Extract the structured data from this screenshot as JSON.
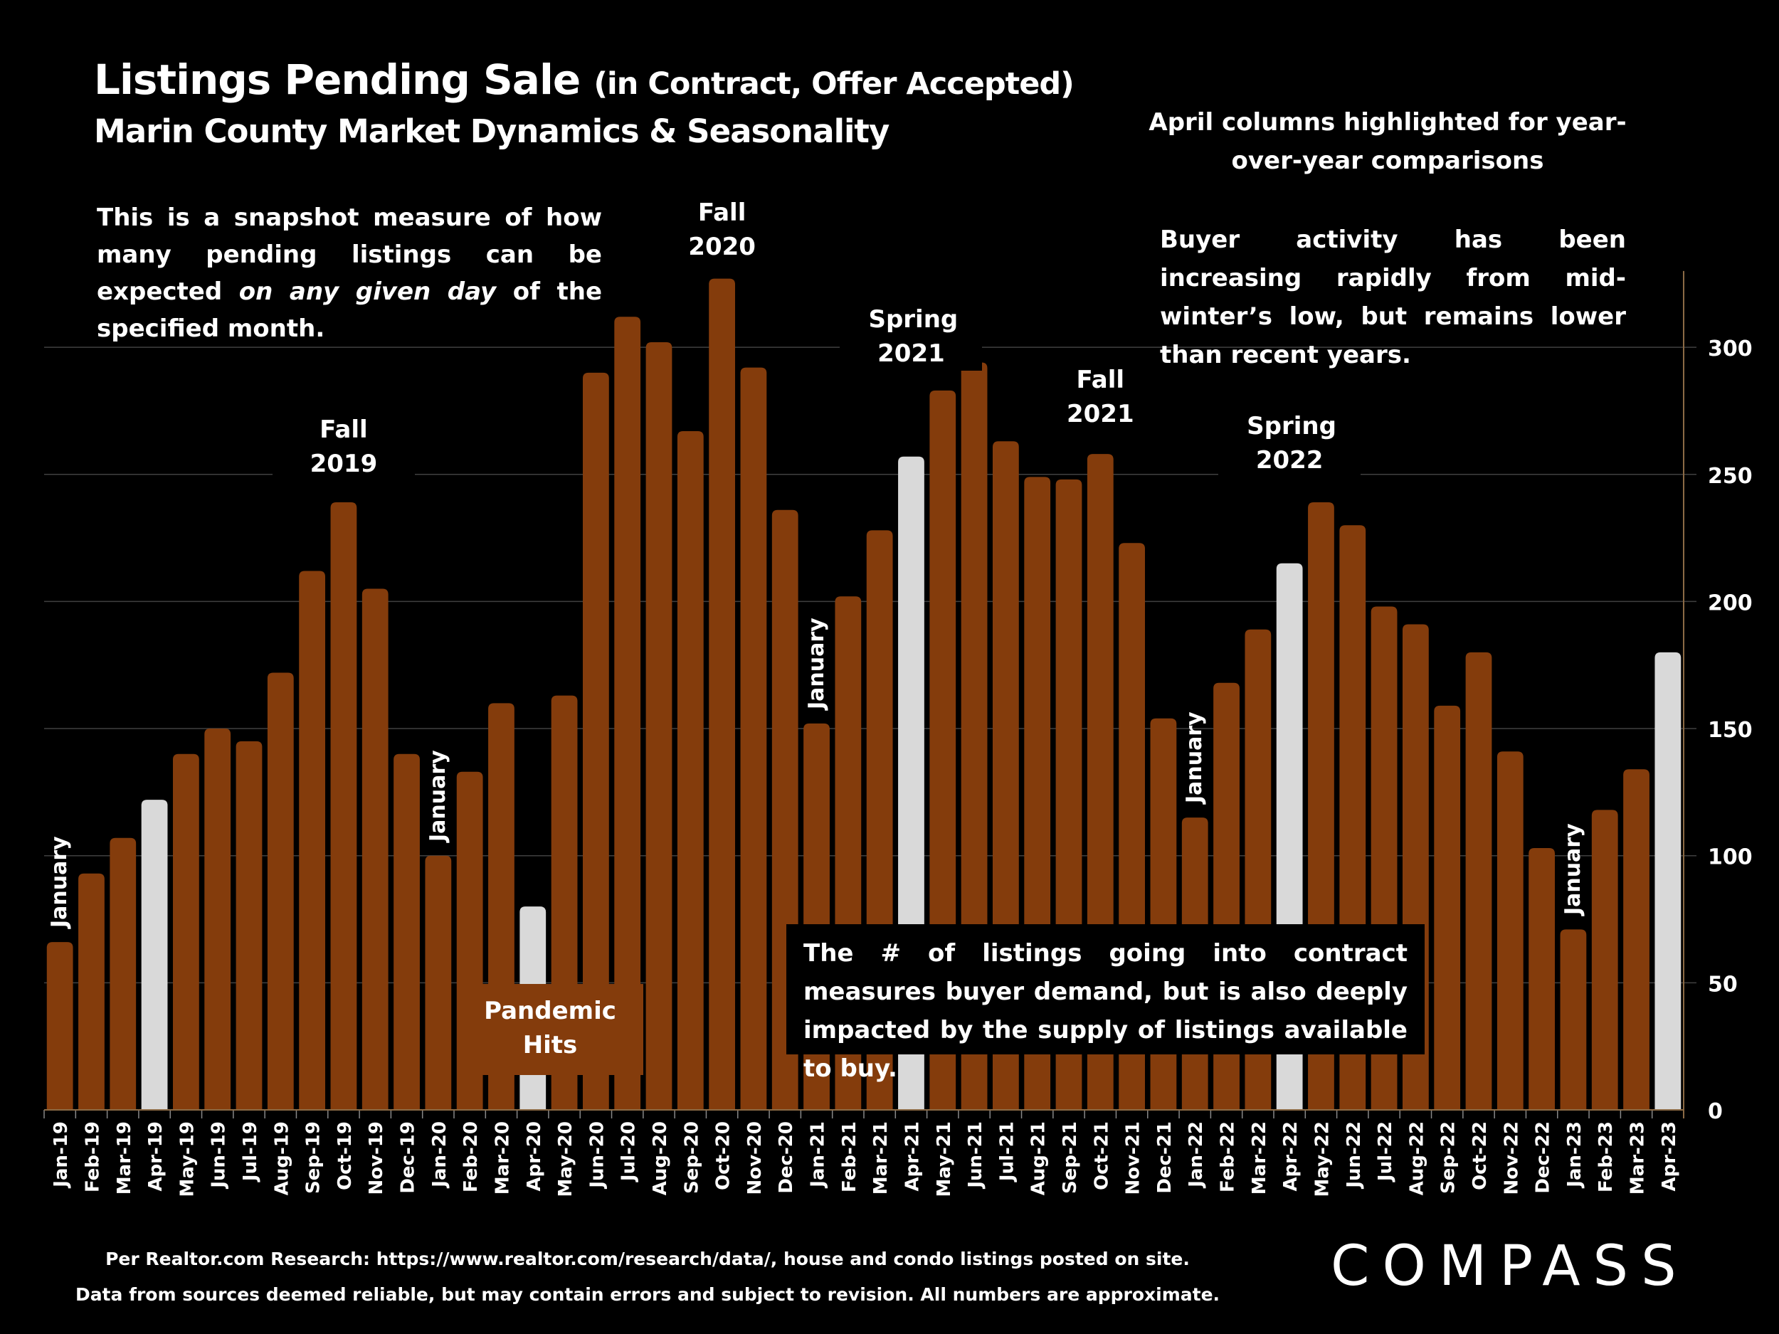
{
  "header": {
    "title_main": "Listings Pending Sale",
    "title_paren": "(in Contract, Offer Accepted)",
    "subtitle": "Marin County Market Dynamics & Seasonality"
  },
  "notes": {
    "left_part1": "This is a snapshot measure of how many pending listings can be expected ",
    "left_italic": "on any given day",
    "left_part2": " of the specified month.",
    "april": "April columns highlighted for year-over-year comparisons",
    "buyer": "Buyer activity has been increasing rapidly from mid-winter’s low, but remains lower than recent years.",
    "supply": "The # of listings going into contract measures buyer demand, but is also deeply impacted by the supply of listings available to buy.",
    "pandemic_line1": "Pandemic",
    "pandemic_line2": "Hits"
  },
  "season_labels": [
    {
      "l1": "Fall",
      "l2": "2019",
      "anchor": "Oct-19"
    },
    {
      "l1": "Fall",
      "l2": "2020",
      "anchor": "Oct-20"
    },
    {
      "l1": "Spring",
      "l2": "2021",
      "anchor": "Apr-21"
    },
    {
      "l1": "Fall",
      "l2": "2021",
      "anchor": "Oct-21"
    },
    {
      "l1": "Spring",
      "l2": "2022",
      "anchor": "Apr-22"
    }
  ],
  "january_label": "January",
  "footer": {
    "line1": "Per Realtor.com Research:  https://www.realtor.com/research/data/, house and condo listings posted on site.",
    "line2": "Data from sources deemed reliable, but may contain errors and subject to revision. All numbers are approximate."
  },
  "logo": "COMPASS",
  "colors": {
    "bar": "#843C0C",
    "highlight": "#D9D9D9",
    "background": "#000000",
    "gridline": "#404040",
    "axis": "#8B6A45",
    "text": "#FFFFFF"
  },
  "chart_data": {
    "type": "bar",
    "title": "Listings Pending Sale (in Contract, Offer Accepted)",
    "subtitle": "Marin County Market Dynamics & Seasonality",
    "xlabel": "",
    "ylabel": "",
    "ylim": [
      0,
      330
    ],
    "yticks": [
      0,
      50,
      100,
      150,
      200,
      250,
      300
    ],
    "y_axis_side": "right",
    "grid": true,
    "highlight_rule": "April columns highlighted",
    "categories": [
      "Jan-19",
      "Feb-19",
      "Mar-19",
      "Apr-19",
      "May-19",
      "Jun-19",
      "Jul-19",
      "Aug-19",
      "Sep-19",
      "Oct-19",
      "Nov-19",
      "Dec-19",
      "Jan-20",
      "Feb-20",
      "Mar-20",
      "Apr-20",
      "May-20",
      "Jun-20",
      "Jul-20",
      "Aug-20",
      "Sep-20",
      "Oct-20",
      "Nov-20",
      "Dec-20",
      "Jan-21",
      "Feb-21",
      "Mar-21",
      "Apr-21",
      "May-21",
      "Jun-21",
      "Jul-21",
      "Aug-21",
      "Sep-21",
      "Oct-21",
      "Nov-21",
      "Dec-21",
      "Jan-22",
      "Feb-22",
      "Mar-22",
      "Apr-22",
      "May-22",
      "Jun-22",
      "Jul-22",
      "Aug-22",
      "Sep-22",
      "Oct-22",
      "Nov-22",
      "Dec-22",
      "Jan-23",
      "Feb-23",
      "Mar-23",
      "Apr-23"
    ],
    "values": [
      66,
      93,
      107,
      122,
      140,
      150,
      145,
      172,
      212,
      239,
      205,
      140,
      100,
      133,
      160,
      80,
      163,
      290,
      312,
      302,
      267,
      327,
      292,
      236,
      152,
      202,
      228,
      257,
      283,
      294,
      263,
      249,
      248,
      258,
      223,
      154,
      115,
      168,
      189,
      215,
      239,
      230,
      198,
      191,
      159,
      180,
      141,
      103,
      71,
      118,
      134,
      180
    ]
  }
}
